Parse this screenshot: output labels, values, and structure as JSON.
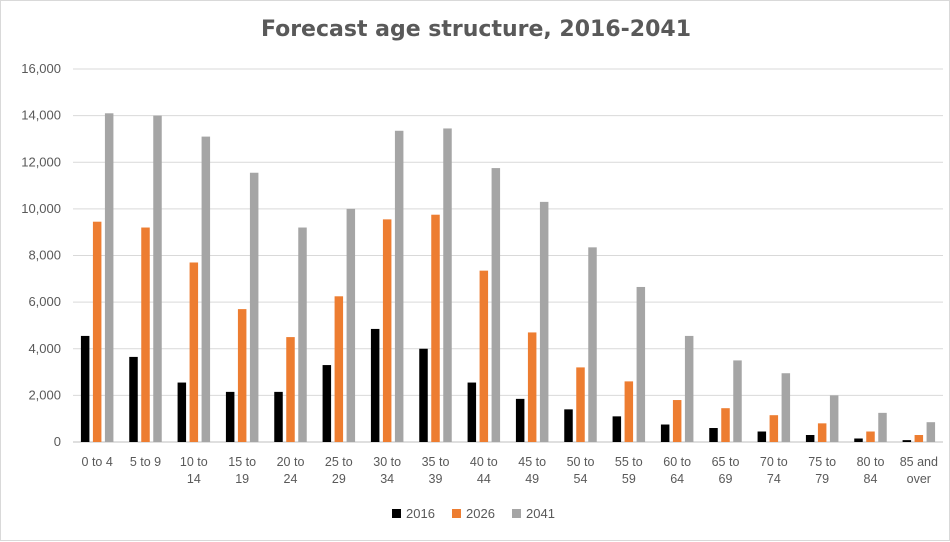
{
  "chart_data": {
    "type": "bar",
    "title": "Forecast age structure, 2016-2041",
    "xlabel": "",
    "ylabel": "",
    "ylim": [
      0,
      16000
    ],
    "yticks": [
      "0",
      "2,000",
      "4,000",
      "6,000",
      "8,000",
      "10,000",
      "12,000",
      "14,000",
      "16,000"
    ],
    "ytick_values": [
      0,
      2000,
      4000,
      6000,
      8000,
      10000,
      12000,
      14000,
      16000
    ],
    "grid": true,
    "legend_position": "bottom",
    "categories": [
      [
        "0 to 4"
      ],
      [
        "5 to 9"
      ],
      [
        "10 to",
        "14"
      ],
      [
        "15 to",
        "19"
      ],
      [
        "20 to",
        "24"
      ],
      [
        "25 to",
        "29"
      ],
      [
        "30 to",
        "34"
      ],
      [
        "35 to",
        "39"
      ],
      [
        "40 to",
        "44"
      ],
      [
        "45 to",
        "49"
      ],
      [
        "50 to",
        "54"
      ],
      [
        "55 to",
        "59"
      ],
      [
        "60 to",
        "64"
      ],
      [
        "65 to",
        "69"
      ],
      [
        "70 to",
        "74"
      ],
      [
        "75 to",
        "79"
      ],
      [
        "80 to",
        "84"
      ],
      [
        "85 and",
        "over"
      ]
    ],
    "series": [
      {
        "name": "2016",
        "color": "#000000",
        "values": [
          4550,
          3650,
          2550,
          2150,
          2150,
          3300,
          4850,
          4000,
          2550,
          1850,
          1400,
          1100,
          750,
          600,
          450,
          300,
          150,
          80
        ]
      },
      {
        "name": "2026",
        "color": "#ed7d31",
        "values": [
          9450,
          9200,
          7700,
          5700,
          4500,
          6250,
          9550,
          9750,
          7350,
          4700,
          3200,
          2600,
          1800,
          1450,
          1150,
          800,
          450,
          300
        ]
      },
      {
        "name": "2041",
        "color": "#a5a5a5",
        "values": [
          14100,
          14000,
          13100,
          11550,
          9200,
          10000,
          13350,
          13450,
          11750,
          10300,
          8350,
          6650,
          4550,
          3500,
          2950,
          2000,
          1250,
          850
        ]
      }
    ]
  }
}
